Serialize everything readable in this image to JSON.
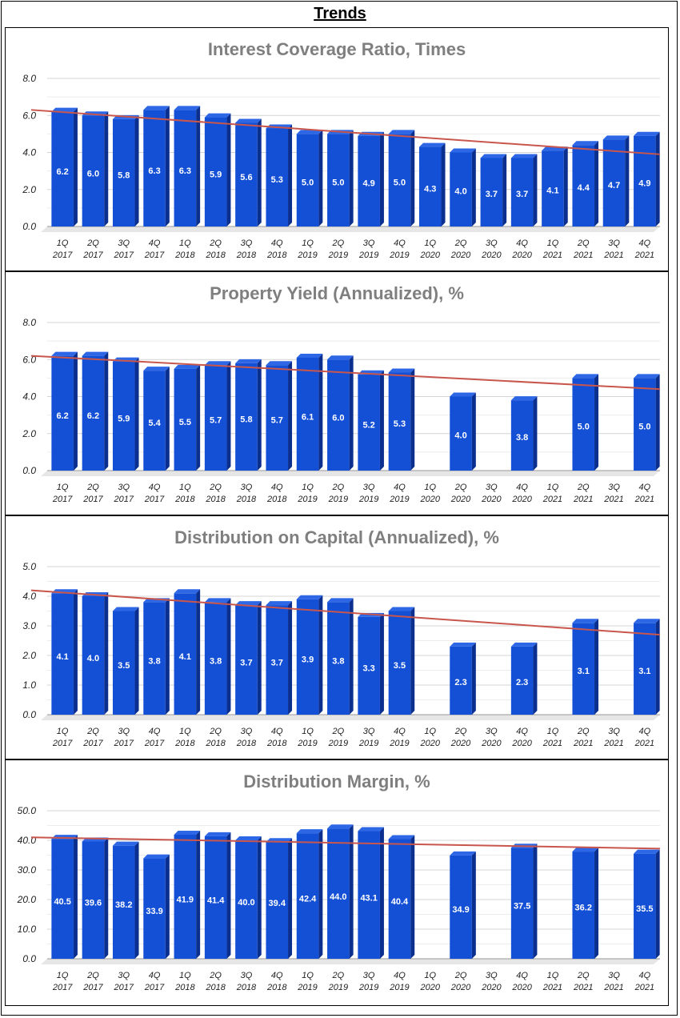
{
  "page": {
    "title": "Trends"
  },
  "colors": {
    "bar_front": "#1450d6",
    "bar_side": "#0b2f8f",
    "bar_top": "#2d67e6",
    "trend": "#c9564c",
    "grid": "#d9d9d9",
    "title": "#7f7f7f"
  },
  "chart_data": [
    {
      "type": "bar",
      "title": "Interest Coverage Ratio, Times",
      "categories": [
        "1Q 2017",
        "2Q 2017",
        "3Q 2017",
        "4Q 2017",
        "1Q 2018",
        "2Q 2018",
        "3Q 2018",
        "4Q 2018",
        "1Q 2019",
        "2Q 2019",
        "3Q 2019",
        "4Q 2019",
        "1Q 2020",
        "2Q 2020",
        "3Q 2020",
        "4Q 2020",
        "1Q 2021",
        "2Q 2021",
        "3Q 2021",
        "4Q 2021"
      ],
      "values": [
        6.2,
        6.0,
        5.8,
        6.3,
        6.3,
        5.9,
        5.6,
        5.3,
        5.0,
        5.0,
        4.9,
        5.0,
        4.3,
        4.0,
        3.7,
        3.7,
        4.1,
        4.4,
        4.7,
        4.9
      ],
      "value_labels": [
        "6.2",
        "6.0",
        "5.8",
        "6.3",
        "6.3",
        "5.9",
        "5.6",
        "5.3",
        "5.0",
        "5.0",
        "4.9",
        "5.0",
        "4.3",
        "4.0",
        "3.7",
        "3.7",
        "4.1",
        "4.4",
        "4.7",
        "4.9"
      ],
      "yticks": [
        0.0,
        2.0,
        4.0,
        6.0,
        8.0
      ],
      "ytick_labels": [
        "0.0",
        "2.0",
        "4.0",
        "6.0",
        "8.0"
      ],
      "ylim": [
        0,
        8
      ],
      "trendline": [
        6.3,
        3.9
      ]
    },
    {
      "type": "bar",
      "title": "Property Yield (Annualized), %",
      "categories": [
        "1Q 2017",
        "2Q 2017",
        "3Q 2017",
        "4Q 2017",
        "1Q 2018",
        "2Q 2018",
        "3Q 2018",
        "4Q 2018",
        "1Q 2019",
        "2Q 2019",
        "3Q 2019",
        "4Q 2019",
        "1Q 2020",
        "2Q 2020",
        "3Q 2020",
        "4Q 2020",
        "1Q 2021",
        "2Q 2021",
        "3Q 2021",
        "4Q 2021"
      ],
      "values": [
        6.2,
        6.2,
        5.9,
        5.4,
        5.5,
        5.7,
        5.8,
        5.7,
        6.1,
        6.0,
        5.2,
        5.3,
        null,
        4.0,
        null,
        3.8,
        null,
        5.0,
        null,
        5.0
      ],
      "value_labels": [
        "6.2",
        "6.2",
        "5.9",
        "5.4",
        "5.5",
        "5.7",
        "5.8",
        "5.7",
        "6.1",
        "6.0",
        "5.2",
        "5.3",
        "",
        "4.0",
        "",
        "3.8",
        "",
        "5.0",
        "",
        "5.0"
      ],
      "yticks": [
        0.0,
        2.0,
        4.0,
        6.0,
        8.0
      ],
      "ytick_labels": [
        "0.0",
        "2.0",
        "4.0",
        "6.0",
        "8.0"
      ],
      "ylim": [
        0,
        8
      ],
      "trendline": [
        6.2,
        4.4
      ]
    },
    {
      "type": "bar",
      "title": "Distribution on Capital (Annualized), %",
      "categories": [
        "1Q 2017",
        "2Q 2017",
        "3Q 2017",
        "4Q 2017",
        "1Q 2018",
        "2Q 2018",
        "3Q 2018",
        "4Q 2018",
        "1Q 2019",
        "2Q 2019",
        "3Q 2019",
        "4Q 2019",
        "1Q 2020",
        "2Q 2020",
        "3Q 2020",
        "4Q 2020",
        "1Q 2021",
        "2Q 2021",
        "3Q 2021",
        "4Q 2021"
      ],
      "values": [
        4.1,
        4.0,
        3.5,
        3.8,
        4.1,
        3.8,
        3.7,
        3.7,
        3.9,
        3.8,
        3.3,
        3.5,
        null,
        2.3,
        null,
        2.3,
        null,
        3.1,
        null,
        3.1
      ],
      "value_labels": [
        "4.1",
        "4.0",
        "3.5",
        "3.8",
        "4.1",
        "3.8",
        "3.7",
        "3.7",
        "3.9",
        "3.8",
        "3.3",
        "3.5",
        "",
        "2.3",
        "",
        "2.3",
        "",
        "3.1",
        "",
        "3.1"
      ],
      "yticks": [
        0.0,
        1.0,
        2.0,
        3.0,
        4.0,
        5.0
      ],
      "ytick_labels": [
        "0.0",
        "1.0",
        "2.0",
        "3.0",
        "4.0",
        "5.0"
      ],
      "ylim": [
        0,
        5
      ],
      "trendline": [
        4.2,
        2.7
      ]
    },
    {
      "type": "bar",
      "title": "Distribution Margin, %",
      "categories": [
        "1Q 2017",
        "2Q 2017",
        "3Q 2017",
        "4Q 2017",
        "1Q 2018",
        "2Q 2018",
        "3Q 2018",
        "4Q 2018",
        "1Q 2019",
        "2Q 2019",
        "3Q 2019",
        "4Q 2019",
        "1Q 2020",
        "2Q 2020",
        "3Q 2020",
        "4Q 2020",
        "1Q 2021",
        "2Q 2021",
        "3Q 2021",
        "4Q 2021"
      ],
      "values": [
        40.5,
        39.6,
        38.2,
        33.9,
        41.9,
        41.4,
        40.0,
        39.4,
        42.4,
        44.0,
        43.1,
        40.4,
        null,
        34.9,
        null,
        37.5,
        null,
        36.2,
        null,
        35.5
      ],
      "value_labels": [
        "40.5",
        "39.6",
        "38.2",
        "33.9",
        "41.9",
        "41.4",
        "40.0",
        "39.4",
        "42.4",
        "44.0",
        "43.1",
        "40.4",
        "",
        "34.9",
        "",
        "37.5",
        "",
        "36.2",
        "",
        "35.5"
      ],
      "yticks": [
        0.0,
        10.0,
        20.0,
        30.0,
        40.0,
        50.0
      ],
      "ytick_labels": [
        "0.0",
        "10.0",
        "20.0",
        "30.0",
        "40.0",
        "50.0"
      ],
      "ylim": [
        0,
        50
      ],
      "trendline": [
        41.0,
        37.2
      ]
    }
  ]
}
